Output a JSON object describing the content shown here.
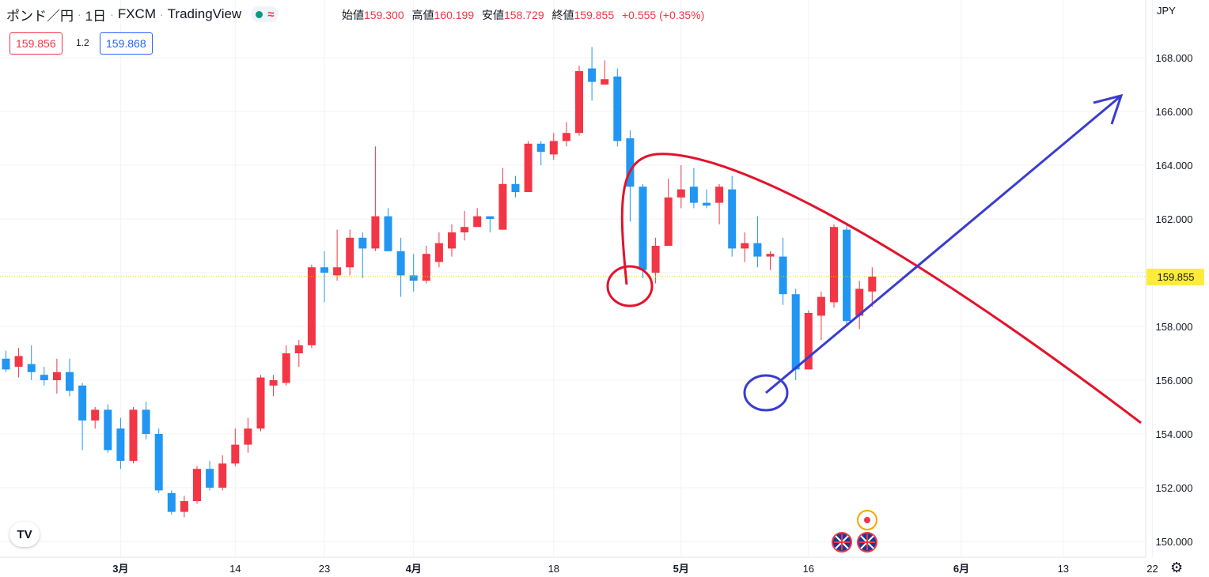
{
  "header": {
    "symbol": "ポンド／円",
    "interval": "1日",
    "source": "FXCM",
    "platform": "TradingView",
    "status_icon": "wave-icon",
    "ohlc": [
      {
        "label": "始値",
        "value": "159.300"
      },
      {
        "label": "高値",
        "value": "160.199"
      },
      {
        "label": "安値",
        "value": "158.729"
      },
      {
        "label": "終値",
        "value": "159.855"
      }
    ],
    "change": "+0.555 (+0.35%)"
  },
  "sell_price": "159.856",
  "spread": "1.2",
  "buy_price": "159.868",
  "currency": "JPY",
  "colors": {
    "up": "#f23645",
    "down": "#2196f3",
    "annot_red": "#e3132b",
    "annot_blue": "#3b3ccf",
    "last_price_bg": "#ffeb3b"
  },
  "chart_data": {
    "type": "candlestick",
    "ylim": [
      149.5,
      169.3
    ],
    "y_ticks": [
      "150.000",
      "152.000",
      "154.000",
      "156.000",
      "158.000",
      "160.000",
      "162.000",
      "164.000",
      "166.000",
      "168.000"
    ],
    "x_ticks": [
      {
        "label": "3月",
        "i": 9
      },
      {
        "label": "14",
        "i": 18
      },
      {
        "label": "23",
        "i": 25
      },
      {
        "label": "4月",
        "i": 32
      },
      {
        "label": "18",
        "i": 43
      },
      {
        "label": "5月",
        "i": 53
      },
      {
        "label": "16",
        "i": 63
      },
      {
        "label": "6月",
        "i": 75
      },
      {
        "label": "13",
        "i": 83
      },
      {
        "label": "22",
        "i": 90
      }
    ],
    "last_price": "159.855",
    "candles": [
      [
        156.8,
        156.4,
        157.1,
        156.3
      ],
      [
        156.5,
        156.9,
        157.2,
        156.1
      ],
      [
        156.6,
        156.3,
        157.3,
        156.0
      ],
      [
        156.2,
        156.0,
        156.5,
        155.8
      ],
      [
        156.0,
        156.3,
        156.8,
        155.5
      ],
      [
        156.3,
        155.6,
        156.8,
        155.4
      ],
      [
        155.8,
        154.5,
        155.9,
        153.4
      ],
      [
        154.5,
        154.9,
        155.0,
        154.2
      ],
      [
        154.9,
        153.4,
        155.1,
        153.3
      ],
      [
        154.2,
        153.0,
        154.6,
        152.7
      ],
      [
        153.0,
        154.9,
        155.0,
        152.9
      ],
      [
        154.9,
        154.0,
        155.2,
        153.8
      ],
      [
        154.0,
        151.9,
        154.2,
        151.8
      ],
      [
        151.8,
        151.1,
        151.9,
        151.0
      ],
      [
        151.1,
        151.5,
        151.7,
        150.9
      ],
      [
        151.5,
        152.7,
        152.8,
        151.4
      ],
      [
        152.7,
        152.0,
        153.0,
        151.9
      ],
      [
        152.0,
        152.9,
        153.2,
        151.9
      ],
      [
        152.9,
        153.6,
        154.2,
        152.8
      ],
      [
        153.6,
        154.2,
        154.6,
        153.3
      ],
      [
        154.2,
        156.1,
        156.2,
        154.1
      ],
      [
        155.8,
        156.0,
        156.2,
        155.4
      ],
      [
        155.9,
        157.0,
        157.3,
        155.8
      ],
      [
        157.0,
        157.3,
        157.5,
        156.5
      ],
      [
        157.3,
        160.2,
        160.3,
        157.2
      ],
      [
        160.2,
        160.0,
        160.8,
        158.9
      ],
      [
        159.9,
        160.2,
        161.6,
        159.7
      ],
      [
        160.2,
        161.3,
        161.6,
        159.9
      ],
      [
        161.3,
        160.9,
        161.5,
        159.8
      ],
      [
        160.9,
        162.1,
        164.7,
        160.8
      ],
      [
        162.1,
        160.8,
        162.4,
        160.8
      ],
      [
        160.8,
        159.9,
        161.3,
        159.1
      ],
      [
        159.9,
        159.7,
        160.7,
        159.3
      ],
      [
        159.7,
        160.7,
        161.0,
        159.6
      ],
      [
        160.4,
        161.1,
        161.5,
        160.2
      ],
      [
        160.9,
        161.5,
        161.8,
        160.6
      ],
      [
        161.5,
        161.7,
        162.3,
        161.2
      ],
      [
        161.7,
        162.1,
        162.4,
        161.8
      ],
      [
        162.1,
        162.0,
        162.1,
        161.5
      ],
      [
        161.6,
        163.3,
        163.9,
        161.6
      ],
      [
        163.3,
        163.0,
        163.6,
        162.8
      ],
      [
        163.0,
        164.8,
        164.9,
        163.0
      ],
      [
        164.8,
        164.5,
        164.9,
        164.0
      ],
      [
        164.4,
        164.9,
        165.2,
        164.2
      ],
      [
        164.9,
        165.2,
        165.6,
        164.7
      ],
      [
        165.2,
        167.5,
        167.7,
        165.1
      ],
      [
        167.6,
        167.1,
        168.4,
        166.4
      ],
      [
        167.0,
        167.2,
        167.9,
        167.0
      ],
      [
        167.3,
        164.9,
        167.6,
        164.7
      ],
      [
        165.0,
        163.2,
        165.3,
        161.9
      ],
      [
        163.2,
        160.1,
        163.3,
        159.8
      ],
      [
        160.0,
        161.0,
        161.3,
        159.6
      ],
      [
        161.0,
        162.8,
        163.5,
        161.1
      ],
      [
        162.8,
        163.1,
        164.0,
        162.4
      ],
      [
        163.2,
        162.6,
        163.9,
        162.4
      ],
      [
        162.6,
        162.5,
        163.1,
        162.4
      ],
      [
        162.6,
        163.2,
        163.3,
        161.8
      ],
      [
        163.1,
        160.9,
        163.6,
        160.6
      ],
      [
        160.9,
        161.1,
        161.5,
        160.4
      ],
      [
        161.1,
        160.6,
        162.1,
        160.2
      ],
      [
        160.6,
        160.7,
        160.8,
        160.1
      ],
      [
        160.6,
        159.2,
        161.3,
        158.8
      ],
      [
        159.2,
        156.4,
        159.4,
        156.0
      ],
      [
        156.4,
        158.5,
        158.6,
        156.4
      ],
      [
        158.4,
        159.1,
        159.3,
        157.5
      ],
      [
        158.9,
        161.7,
        161.8,
        158.7
      ],
      [
        161.6,
        158.2,
        161.8,
        158.0
      ],
      [
        158.4,
        159.4,
        159.7,
        157.9
      ],
      [
        159.3,
        159.855,
        160.199,
        158.729
      ]
    ]
  }
}
